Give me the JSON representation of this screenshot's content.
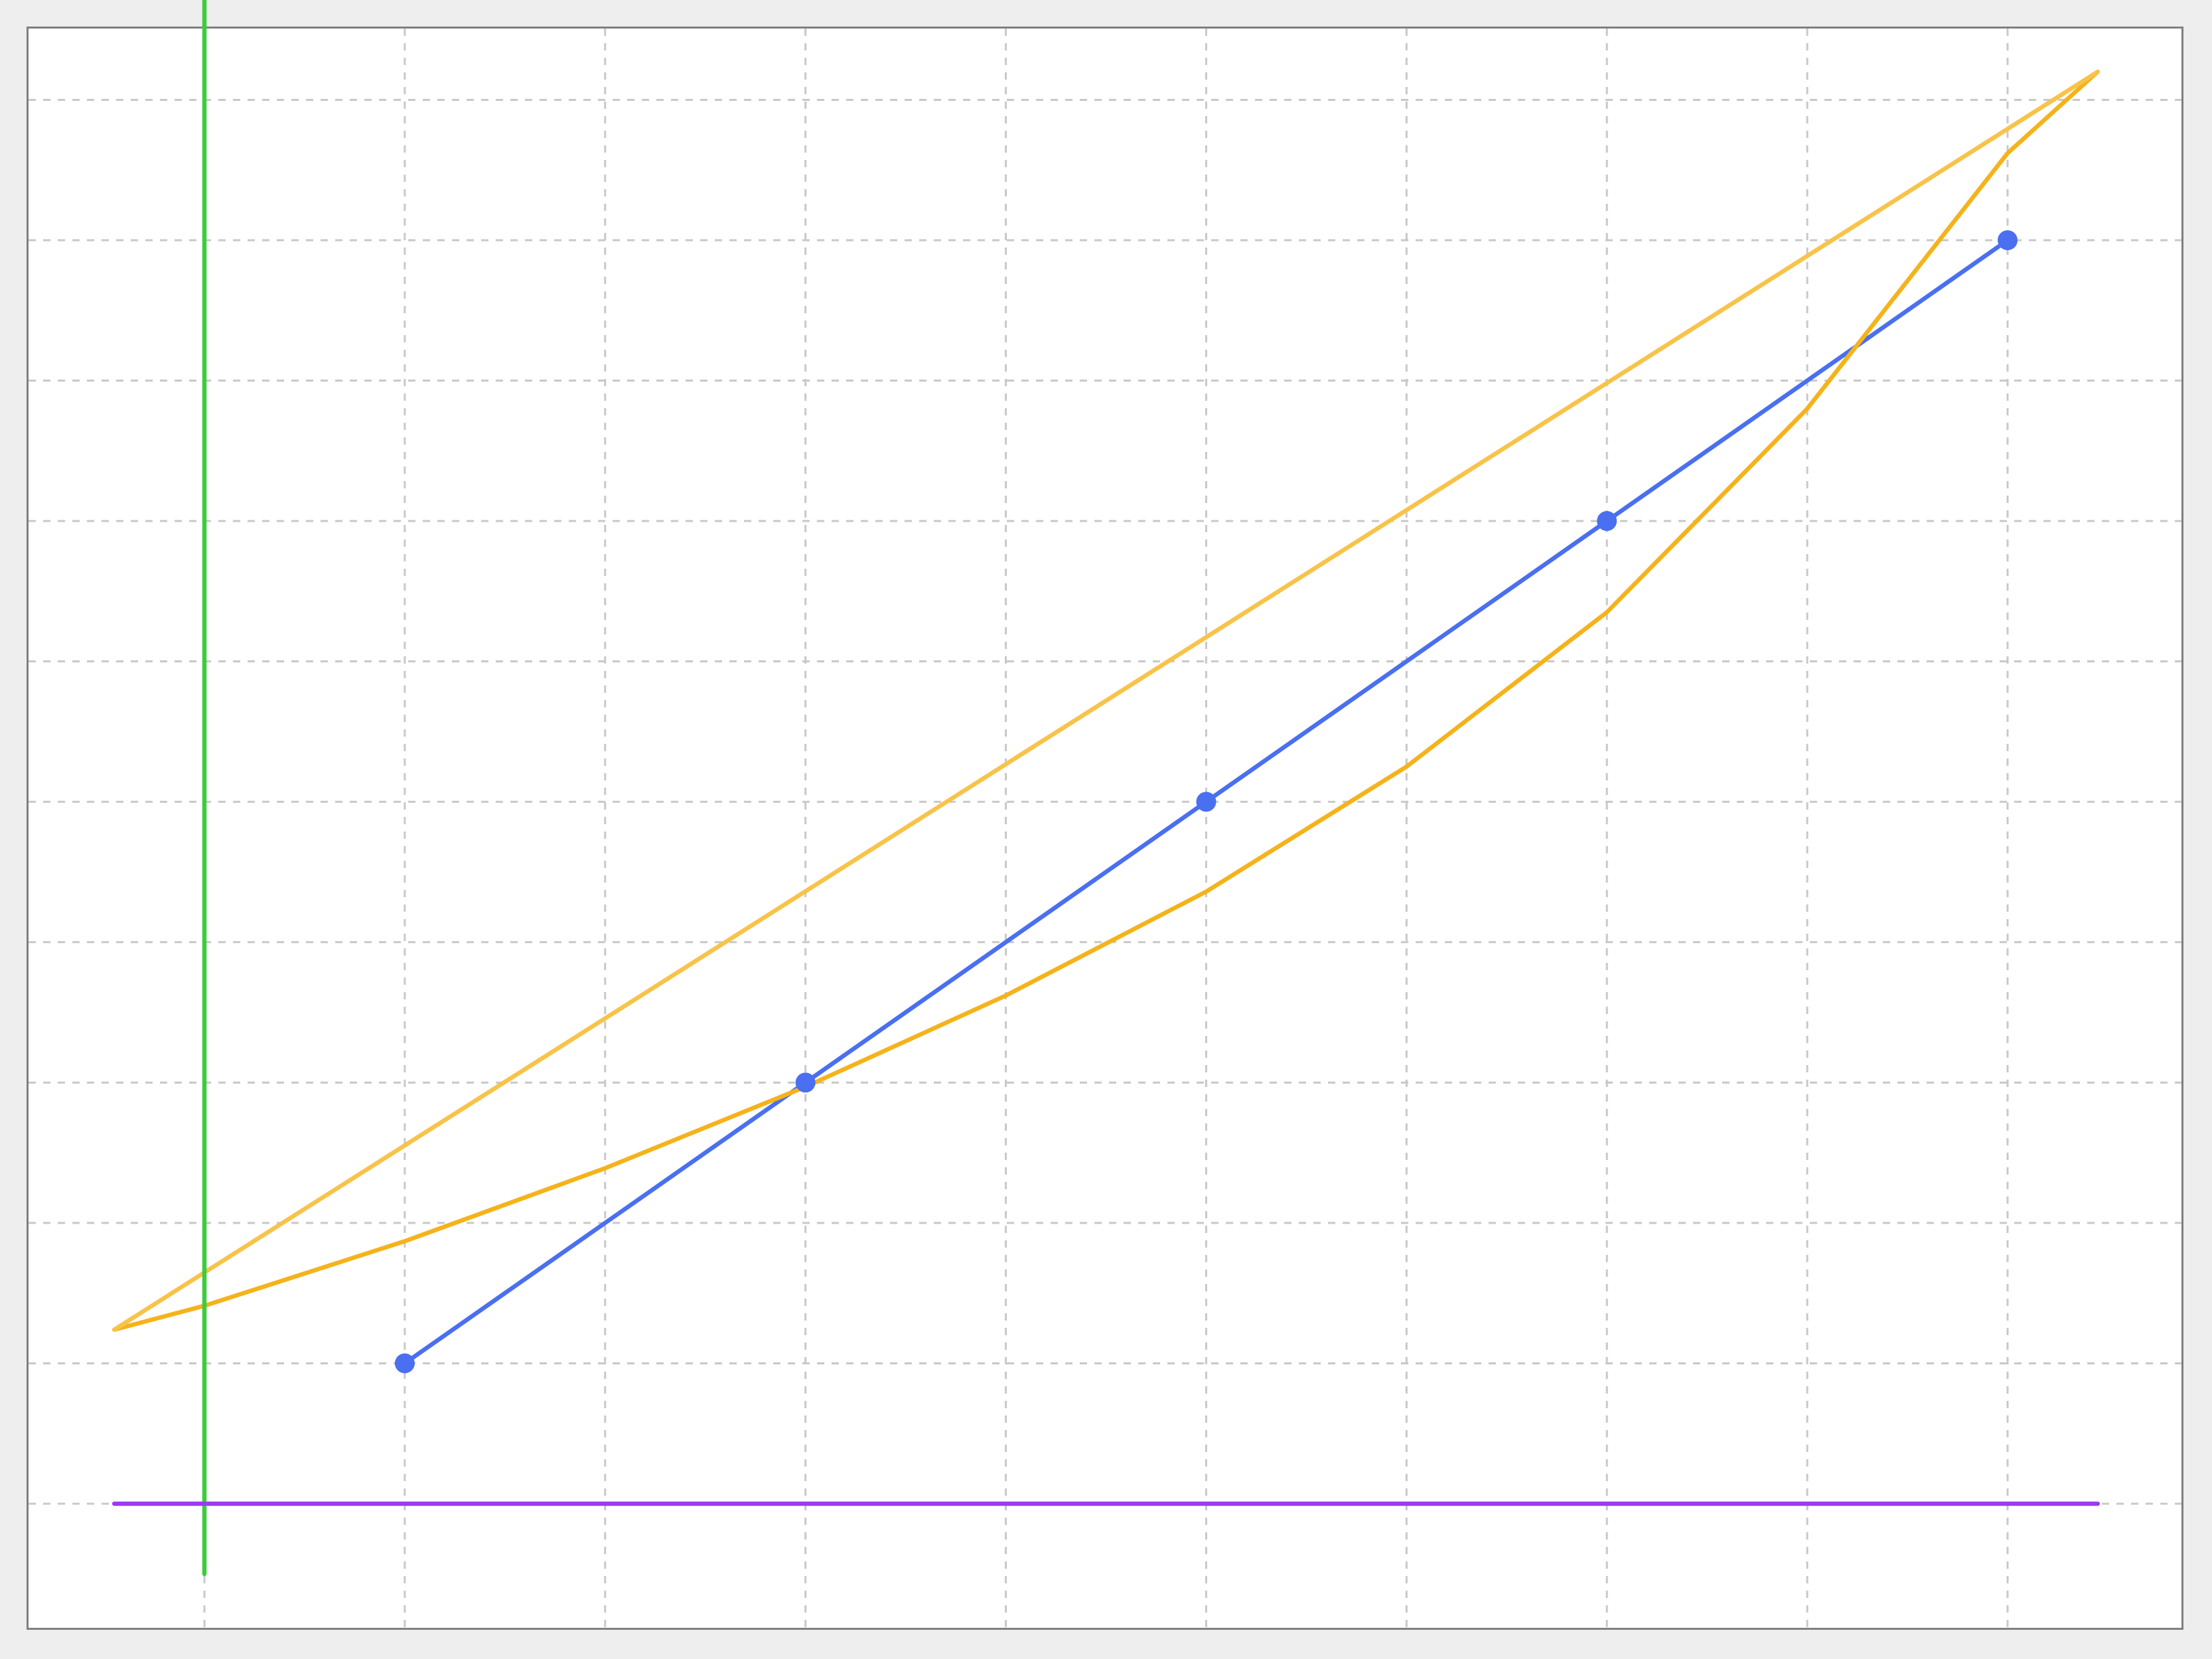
{
  "chart_data": {
    "type": "line",
    "title": "",
    "xlabel": "",
    "ylabel": "",
    "grid": true,
    "xlim": [
      -0.1,
      1.0
    ],
    "ylim": [
      -0.1,
      1.2
    ],
    "x_grid_ticks": [
      0.0,
      0.1,
      0.2,
      0.3,
      0.4,
      0.5,
      0.6,
      0.7,
      0.8,
      0.9,
      1.0
    ],
    "y_grid_ticks": [
      0.0,
      0.1,
      0.2,
      0.3,
      0.4,
      0.5,
      0.6,
      0.7,
      0.8,
      0.9,
      1.0,
      1.1,
      1.2
    ],
    "series": [
      {
        "color": "#4a6ff0",
        "markers": true,
        "x": [
          0.1,
          0.3,
          0.5,
          0.7,
          0.9
        ],
        "y": [
          0.1,
          0.3,
          0.5,
          0.7,
          0.9
        ]
      },
      {
        "color": "#f5b31b",
        "markers": false,
        "x": [
          -0.045,
          0.0,
          0.1,
          0.2,
          0.3,
          0.4,
          0.5,
          0.6,
          0.7,
          0.8,
          0.9,
          0.945
        ],
        "y": [
          0.124,
          0.141,
          0.187,
          0.239,
          0.297,
          0.362,
          0.436,
          0.525,
          0.635,
          0.78,
          0.962,
          1.02
        ]
      },
      {
        "color": "#f8c349",
        "markers": false,
        "x": [
          -0.045,
          0.945
        ],
        "y": [
          0.124,
          1.02
        ]
      },
      {
        "color": "#3dcc3d",
        "markers": false,
        "x": [
          0.0,
          0.0
        ],
        "y": [
          -0.05,
          1.12
        ]
      },
      {
        "color": "#9b3bf0",
        "markers": false,
        "x": [
          -0.045,
          0.945
        ],
        "y": [
          0.0,
          0.0
        ]
      }
    ]
  }
}
